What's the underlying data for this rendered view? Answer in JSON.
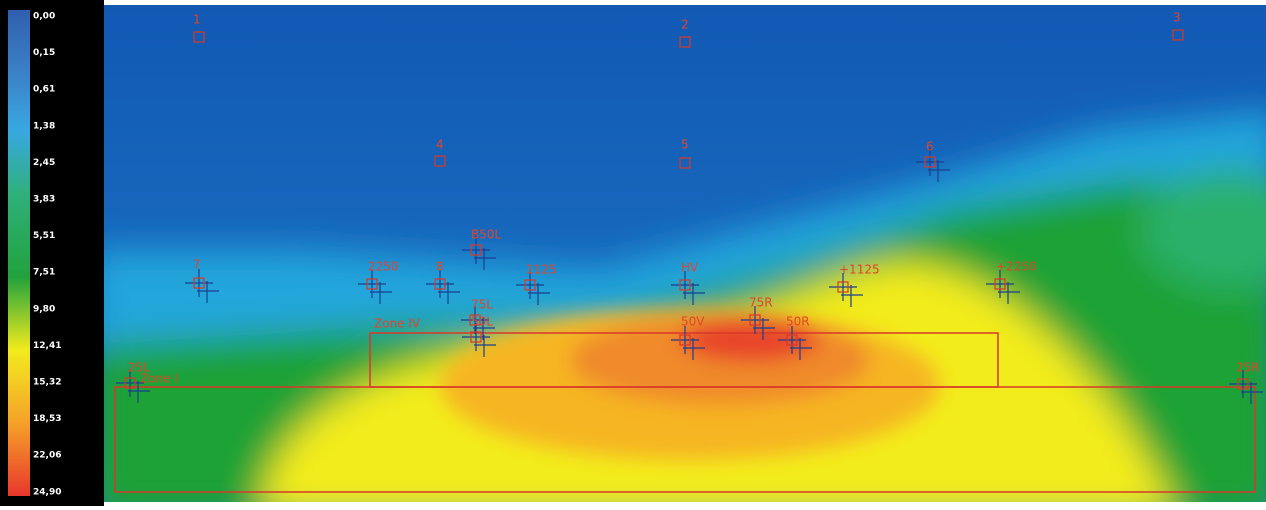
{
  "legend": {
    "ticks": [
      "0,00",
      "0,15",
      "0,61",
      "1,38",
      "2,45",
      "3,83",
      "5,51",
      "7,51",
      "9,80",
      "12,41",
      "15,32",
      "18,53",
      "22,06",
      "24,90"
    ]
  },
  "points": [
    {
      "label": "1"
    },
    {
      "label": "2"
    },
    {
      "label": "3"
    },
    {
      "label": "4"
    },
    {
      "label": "5"
    },
    {
      "label": "6"
    },
    {
      "label": "B50L"
    },
    {
      "label": "7"
    },
    {
      "label": "2250"
    },
    {
      "label": "8"
    },
    {
      "label": "1125"
    },
    {
      "label": "HV"
    },
    {
      "label": "+1125"
    },
    {
      "label": "+2250"
    },
    {
      "label": "75L"
    },
    {
      "label": "50L"
    },
    {
      "label": "50V"
    },
    {
      "label": "75R"
    },
    {
      "label": "50R"
    },
    {
      "label": "25L"
    },
    {
      "label": "25R"
    }
  ],
  "zones": [
    {
      "label": "Zone IV"
    },
    {
      "label": "Zone I"
    }
  ]
}
